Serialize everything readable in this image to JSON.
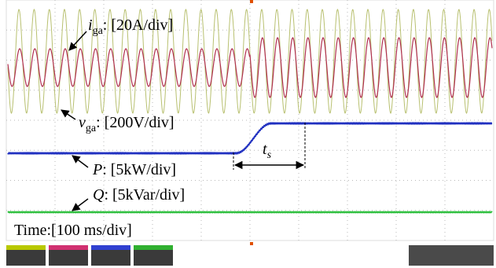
{
  "annotations": {
    "current": {
      "symbol": "i",
      "subscript": "ga",
      "scale": ": [20A/div]"
    },
    "voltage": {
      "symbol": "v",
      "subscript": "ga",
      "scale": ": [200V/div]"
    },
    "active_power": {
      "symbol": "P",
      "scale": ": [5kW/div]"
    },
    "reactive_power": {
      "symbol": "Q",
      "scale": ": [5kVar/div]"
    },
    "time": "Time:[100 ms/div]",
    "settling": {
      "symbol": "t",
      "subscript": "s"
    }
  }
}
